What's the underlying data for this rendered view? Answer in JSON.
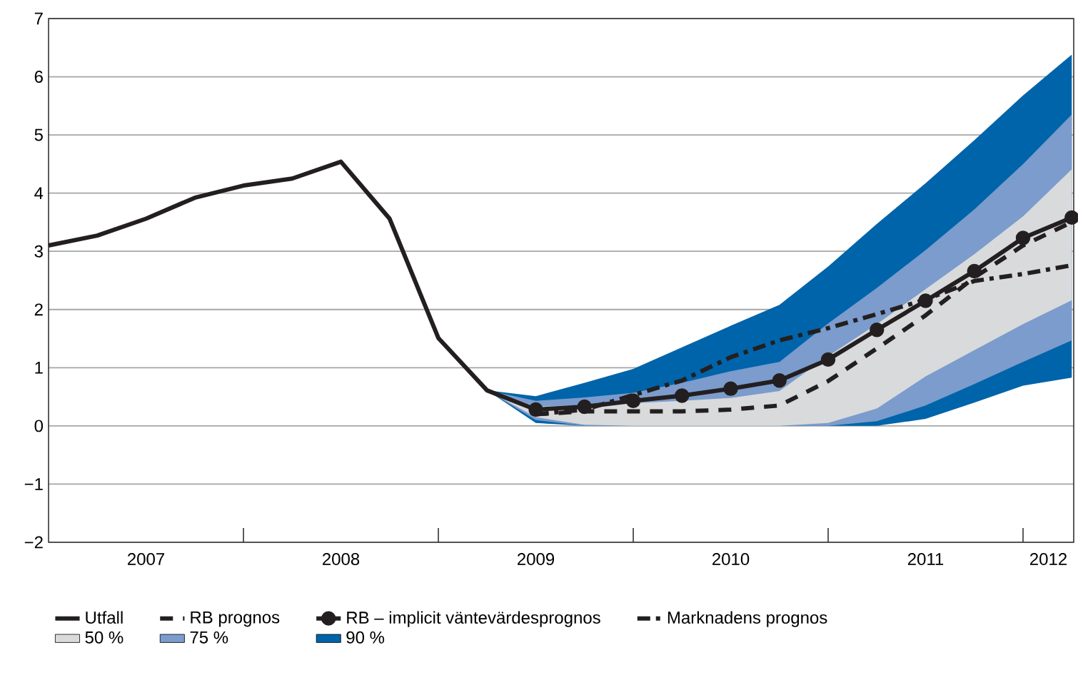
{
  "chart_data": {
    "type": "line",
    "xlim": [
      2007,
      2012.26
    ],
    "ylim": [
      -2,
      7
    ],
    "xticks": [
      {
        "value": 2007.5,
        "label": "2007"
      },
      {
        "value": 2008,
        "label": null
      },
      {
        "value": 2008.5,
        "label": "2008"
      },
      {
        "value": 2009,
        "label": null
      },
      {
        "value": 2009.5,
        "label": "2009"
      },
      {
        "value": 2010,
        "label": null
      },
      {
        "value": 2010.5,
        "label": "2010"
      },
      {
        "value": 2011,
        "label": null
      },
      {
        "value": 2011.5,
        "label": "2011"
      },
      {
        "value": 2012,
        "label": null
      },
      {
        "value": 2012.13,
        "label": "2012"
      }
    ],
    "yticks": [
      {
        "value": -2,
        "label": "−2"
      },
      {
        "value": -1,
        "label": "−1"
      },
      0,
      1,
      2,
      3,
      4,
      5,
      6,
      7
    ],
    "grid": "y",
    "legend": "bottom",
    "series": [
      {
        "name": "Utfall",
        "type": "line",
        "color": "#231f20",
        "line_style": "solid",
        "marker": "none",
        "x": [
          2007,
          2007.25,
          2007.5,
          2007.75,
          2008,
          2008.25,
          2008.5,
          2008.75,
          2009,
          2009.25,
          2009.5
        ],
        "values": [
          3.1,
          3.27,
          3.56,
          3.92,
          4.13,
          4.25,
          4.54,
          3.56,
          1.51,
          0.61,
          0.28
        ]
      },
      {
        "name": "RB prognos",
        "type": "line",
        "color": "#231f20",
        "line_style": "dashed",
        "marker": "none",
        "x": [
          2009.5,
          2009.75,
          2010,
          2010.25,
          2010.5,
          2010.75,
          2011,
          2011.25,
          2011.5,
          2011.75,
          2012,
          2012.25
        ],
        "values": [
          0.2,
          0.25,
          0.25,
          0.25,
          0.28,
          0.35,
          0.77,
          1.33,
          1.9,
          2.55,
          3.1,
          3.5
        ]
      },
      {
        "name": "RB – implicit väntevärdesprognos",
        "type": "line",
        "color": "#231f20",
        "line_style": "solid",
        "marker": "circle",
        "x": [
          2009.5,
          2009.75,
          2010,
          2010.25,
          2010.5,
          2010.75,
          2011,
          2011.25,
          2011.5,
          2011.75,
          2012,
          2012.25
        ],
        "values": [
          0.28,
          0.33,
          0.43,
          0.52,
          0.64,
          0.78,
          1.14,
          1.65,
          2.15,
          2.66,
          3.23,
          3.58
        ]
      },
      {
        "name": "Marknadens prognos",
        "type": "line",
        "color": "#231f20",
        "line_style": "dashdot",
        "marker": "none",
        "x": [
          2009.5,
          2009.75,
          2010,
          2010.25,
          2010.5,
          2010.75,
          2011,
          2011.25,
          2011.5,
          2011.75,
          2012,
          2012.25
        ],
        "values": [
          0.2,
          0.28,
          0.53,
          0.78,
          1.18,
          1.47,
          1.68,
          1.92,
          2.17,
          2.49,
          2.61,
          2.76
        ]
      },
      {
        "name": "50 %",
        "type": "area",
        "color": "#d9dadb",
        "x": [
          2009.25,
          2009.5,
          2009.75,
          2010,
          2010.25,
          2010.5,
          2010.75,
          2011,
          2011.25,
          2011.5,
          2011.75,
          2012,
          2012.25
        ],
        "values": [
          null,
          null,
          null,
          null,
          null,
          null,
          null,
          null,
          null,
          null,
          null,
          null,
          null
        ],
        "lower": [
          0.61,
          0.15,
          0.02,
          0,
          0,
          0,
          0,
          0.05,
          0.3,
          0.85,
          1.3,
          1.75,
          2.16
        ],
        "upper": [
          0.61,
          0.33,
          0.36,
          0.39,
          0.43,
          0.48,
          0.6,
          1.2,
          1.75,
          2.35,
          2.95,
          3.6,
          4.41
        ]
      },
      {
        "name": "75 %",
        "type": "area",
        "color": "#7b9ccc",
        "x": [
          2009.25,
          2009.5,
          2009.75,
          2010,
          2010.25,
          2010.5,
          2010.75,
          2011,
          2011.25,
          2011.5,
          2011.75,
          2012,
          2012.25
        ],
        "values": [
          null,
          null,
          null,
          null,
          null,
          null,
          null,
          null,
          null,
          null,
          null,
          null,
          null
        ],
        "lower": [
          0.61,
          0.1,
          0,
          0,
          0,
          0,
          0,
          0,
          0.08,
          0.35,
          0.72,
          1.1,
          1.47
        ],
        "upper": [
          0.61,
          0.43,
          0.49,
          0.57,
          0.74,
          0.94,
          1.1,
          1.76,
          2.37,
          3.02,
          3.72,
          4.5,
          5.35
        ]
      },
      {
        "name": "90 %",
        "type": "area",
        "color": "#0064aa",
        "x": [
          2009.25,
          2009.5,
          2009.75,
          2010,
          2010.25,
          2010.5,
          2010.75,
          2011,
          2011.25,
          2011.5,
          2011.75,
          2012,
          2012.25
        ],
        "values": [
          null,
          null,
          null,
          null,
          null,
          null,
          null,
          null,
          null,
          null,
          null,
          null,
          null
        ],
        "lower": [
          0.61,
          0.05,
          0,
          0,
          0,
          0,
          0,
          0,
          0,
          0.12,
          0.4,
          0.69,
          0.83
        ],
        "upper": [
          0.61,
          0.51,
          0.74,
          0.98,
          1.35,
          1.72,
          2.08,
          2.74,
          3.47,
          4.17,
          4.91,
          5.68,
          6.38
        ]
      }
    ]
  }
}
